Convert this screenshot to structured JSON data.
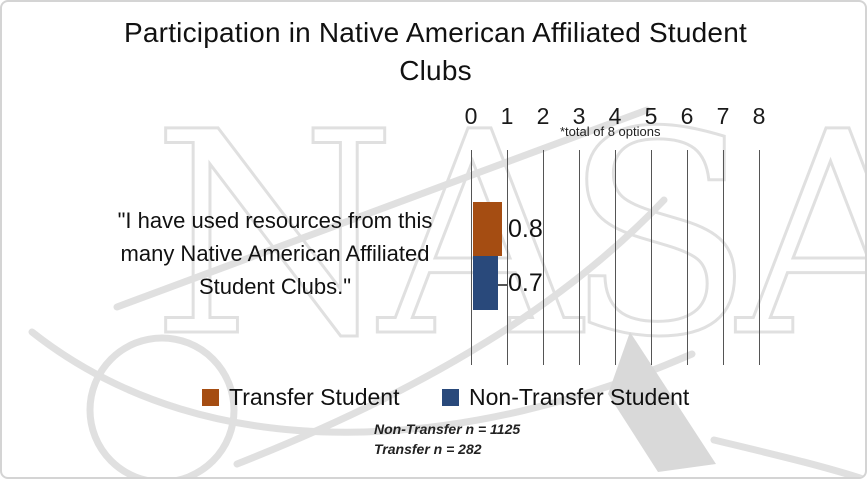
{
  "title_lines": [
    "Participation in Native American Affiliated Student",
    "Clubs"
  ],
  "watermark": {
    "text": "NASA"
  },
  "row_label_lines": [
    "\"I have used resources from this",
    "many Native American Affiliated",
    "Student Clubs.\""
  ],
  "axis_note": "*total of 8 options",
  "footnotes": {
    "line1": "Non-Transfer n = 1125",
    "line2": "Transfer n = 282"
  },
  "colors": {
    "transfer": "#A54D12",
    "non_transfer": "#29497B",
    "gridline": "#555555",
    "watermark_stroke": "#E0E0E0",
    "watermark_solid": "#D9D9D9"
  },
  "chart_data": {
    "type": "bar",
    "orientation": "horizontal",
    "title": "Participation in Native American Affiliated Student Clubs",
    "categories": [
      "I have used resources from this many Native American Affiliated Student Clubs."
    ],
    "series": [
      {
        "name": "Transfer Student",
        "color": "#A54D12",
        "values": [
          0.8
        ],
        "n": 282
      },
      {
        "name": "Non-Transfer Student",
        "color": "#29497B",
        "values": [
          0.7
        ],
        "n": 1125
      }
    ],
    "data_labels": [
      "0.8",
      "0.7"
    ],
    "xlim": [
      0,
      8
    ],
    "xticks": [
      0,
      1,
      2,
      3,
      4,
      5,
      6,
      7,
      8
    ],
    "axis_note": "*total of 8 options",
    "grid": "vertical",
    "legend_position": "bottom"
  }
}
